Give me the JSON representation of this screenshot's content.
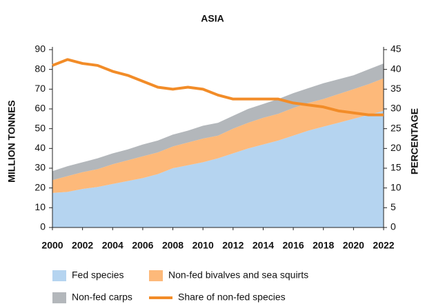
{
  "chart_data": {
    "type": "stacked_area_line",
    "title": "ASIA",
    "ylabel": "MILLION TONNES",
    "y2label": "PERCENTAGE",
    "x": [
      2000,
      2001,
      2002,
      2003,
      2004,
      2005,
      2006,
      2007,
      2008,
      2009,
      2010,
      2011,
      2012,
      2013,
      2014,
      2015,
      2016,
      2017,
      2018,
      2019,
      2020,
      2021,
      2022
    ],
    "xlim": [
      2000,
      2022
    ],
    "xticks": [
      2000,
      2002,
      2004,
      2006,
      2008,
      2010,
      2012,
      2014,
      2016,
      2018,
      2020,
      2022
    ],
    "ylim": [
      0,
      90
    ],
    "yticks": [
      0,
      10,
      20,
      30,
      40,
      50,
      60,
      70,
      80,
      90
    ],
    "y2lim": [
      0,
      45
    ],
    "y2ticks": [
      0,
      5,
      10,
      15,
      20,
      25,
      30,
      35,
      40,
      45
    ],
    "series": [
      {
        "name": "Fed species",
        "color": "#b5d4f0",
        "kind": "area",
        "values": [
          17.5,
          18,
          19.5,
          20.5,
          22,
          23.5,
          25,
          27,
          30,
          31.5,
          33,
          35,
          37.5,
          40,
          42,
          44,
          46.5,
          49,
          51,
          53,
          55,
          57,
          59
        ]
      },
      {
        "name": "Non-fed bivalves and sea squirts",
        "color": "#fdb97a",
        "kind": "area",
        "values": [
          6.5,
          8,
          8.5,
          9,
          10,
          10.5,
          11,
          11,
          11,
          11.5,
          12,
          11.5,
          12.5,
          13,
          13.5,
          13.5,
          14,
          14,
          14,
          14.5,
          15,
          15.5,
          16.5
        ]
      },
      {
        "name": "Non-fed carps",
        "color": "#b3b7bb",
        "kind": "area",
        "values": [
          4.5,
          5,
          5,
          5.5,
          5.5,
          5.5,
          6,
          6,
          6,
          6,
          6.5,
          6.5,
          6.5,
          7,
          7,
          7.5,
          7.5,
          7.5,
          8,
          7.5,
          7,
          7.5,
          7.5
        ]
      },
      {
        "name": "Share of non-fed species",
        "color": "#f28c28",
        "kind": "line",
        "axis": "y2",
        "values": [
          41,
          42.5,
          41.5,
          41,
          39.5,
          38.5,
          37,
          35.5,
          35,
          35.5,
          35,
          33.5,
          32.5,
          32.5,
          32.5,
          32.5,
          31.5,
          31,
          30.5,
          29.5,
          29,
          28.5,
          28.5
        ]
      }
    ]
  }
}
